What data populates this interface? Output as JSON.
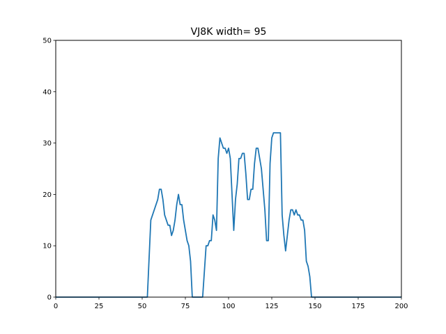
{
  "chart_data": {
    "type": "line",
    "title": "VJ8K width= 95",
    "xlabel": "",
    "ylabel": "",
    "xlim": [
      0,
      200
    ],
    "ylim": [
      0,
      50
    ],
    "xticks": [
      0,
      25,
      50,
      75,
      100,
      125,
      150,
      175,
      200
    ],
    "yticks": [
      0,
      10,
      20,
      30,
      40,
      50
    ],
    "grid": false,
    "line_color": "#1f77b4",
    "series": [
      {
        "x": [
          0,
          53,
          55,
          59,
          60,
          61,
          62,
          63,
          64,
          65,
          66,
          67,
          68,
          69,
          70,
          71,
          72,
          73,
          74,
          75,
          76,
          77,
          78,
          79,
          80,
          81,
          82,
          83,
          84,
          85,
          86,
          87,
          88,
          89,
          90,
          91,
          92,
          93,
          94,
          95,
          96,
          97,
          98,
          99,
          100,
          101,
          102,
          103,
          104,
          105,
          106,
          107,
          108,
          109,
          110,
          111,
          112,
          113,
          114,
          115,
          116,
          117,
          118,
          119,
          120,
          121,
          122,
          123,
          124,
          125,
          126,
          127,
          128,
          129,
          130,
          131,
          132,
          133,
          134,
          135,
          136,
          137,
          138,
          139,
          140,
          141,
          142,
          143,
          144,
          145,
          146,
          147,
          148,
          200
        ],
        "y": [
          0,
          0,
          15,
          19,
          21,
          21,
          19,
          16,
          15,
          14,
          14,
          12,
          13,
          15,
          18,
          20,
          18,
          18,
          15,
          13,
          11,
          10,
          7,
          0,
          0,
          0,
          0,
          0,
          0,
          0,
          5,
          10,
          10,
          11,
          11,
          16,
          15,
          13,
          27,
          31,
          30,
          29,
          29,
          28,
          29,
          27,
          20,
          13,
          19,
          22,
          27,
          27,
          28,
          28,
          24,
          19,
          19,
          21,
          21,
          26,
          29,
          29,
          27,
          25,
          21,
          17,
          11,
          11,
          26,
          31,
          32,
          32,
          32,
          32,
          32,
          16,
          12,
          9,
          12,
          15,
          17,
          17,
          16,
          17,
          16,
          16,
          15,
          15,
          13,
          7,
          6,
          4,
          0,
          0
        ]
      }
    ]
  }
}
